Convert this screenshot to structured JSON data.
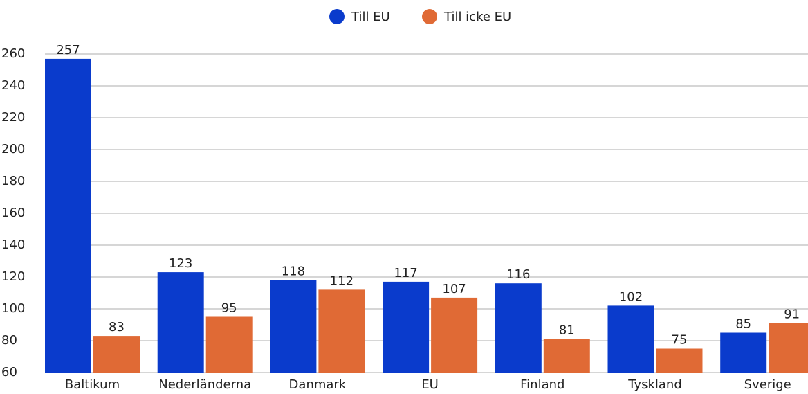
{
  "chart_data": {
    "type": "bar",
    "categories": [
      "Baltikum",
      "Nederländerna",
      "Danmark",
      "EU",
      "Finland",
      "Tyskland",
      "Sverige"
    ],
    "series": [
      {
        "name": "Till EU",
        "color": "#0a3bcc",
        "values": [
          257,
          123,
          118,
          117,
          116,
          102,
          85
        ]
      },
      {
        "name": "Till icke EU",
        "color": "#e06a35",
        "values": [
          83,
          95,
          112,
          107,
          81,
          75,
          91
        ]
      }
    ],
    "ylim": [
      60,
      260
    ],
    "yticks": [
      60,
      80,
      100,
      120,
      140,
      160,
      180,
      200,
      220,
      240,
      260
    ],
    "grid": true,
    "legend": "top"
  }
}
